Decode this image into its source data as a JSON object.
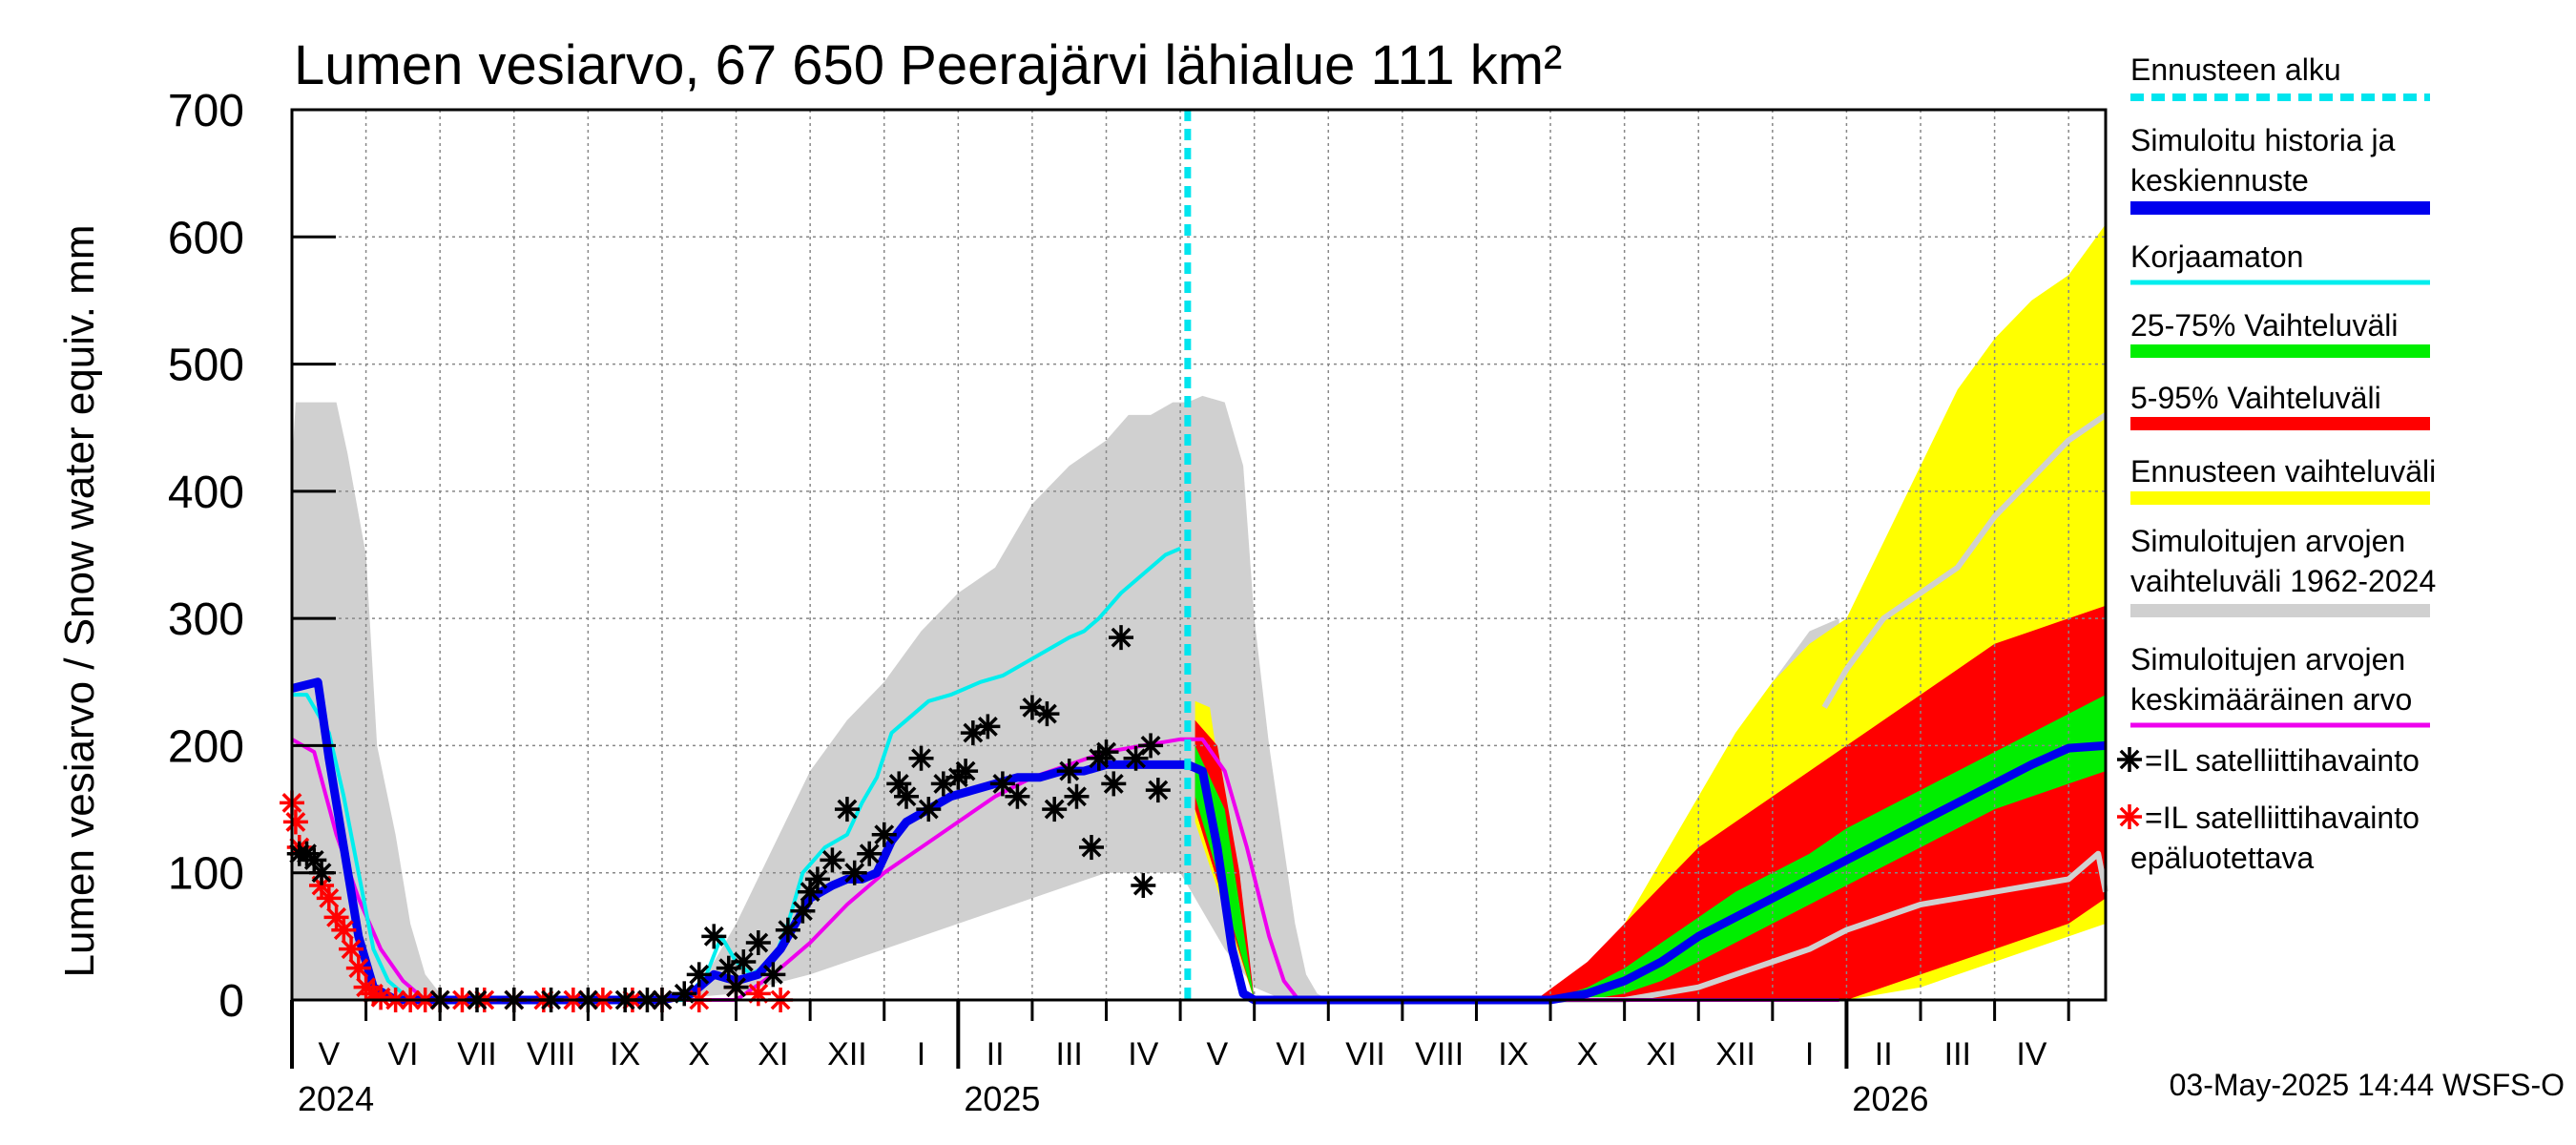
{
  "chart_data": {
    "type": "area",
    "title": "Lumen vesiarvo, 67 650 Peerajärvi lähialue 111 km²",
    "ylabel": "Lumen vesiarvo / Snow water equiv.    mm",
    "ylim": [
      0,
      700
    ],
    "yticks": [
      0,
      100,
      200,
      300,
      400,
      500,
      600,
      700
    ],
    "grid": true,
    "x_unit": "months since 2024-04-01",
    "xlim": [
      1.0,
      25.5
    ],
    "month_labels": [
      "V",
      "VI",
      "VII",
      "VIII",
      "IX",
      "X",
      "XI",
      "XII",
      "I",
      "II",
      "III",
      "IV",
      "V",
      "VI",
      "VII",
      "VIII",
      "IX",
      "X",
      "XI",
      "XII",
      "I",
      "II",
      "III",
      "IV"
    ],
    "year_labels": [
      "2024",
      "2025",
      "2026"
    ],
    "forecast_start": 13.1,
    "legend": [
      {
        "label": "Ennusteen alku",
        "color": "#00e5ee",
        "style": "dashed"
      },
      {
        "label": "Simuloitu historia ja keskiennuste",
        "color": "#0000ee",
        "style": "thick"
      },
      {
        "label": "Korjaamaton",
        "color": "#00eeee",
        "style": "line"
      },
      {
        "label": "25-75% Vaihteluväli",
        "color": "#00ee00",
        "style": "band"
      },
      {
        "label": "5-95% Vaihteluväli",
        "color": "#ff0000",
        "style": "band"
      },
      {
        "label": "Ennusteen vaihteluväli",
        "color": "#ffff00",
        "style": "band"
      },
      {
        "label": "Simuloitujen arvojen vaihteluväli 1962-2024",
        "color": "#d0d0d0",
        "style": "band"
      },
      {
        "label": "Simuloitujen arvojen keskimääräinen arvo",
        "color": "#ee00ee",
        "style": "line"
      },
      {
        "label": "=IL satelliittihavainto",
        "color": "#000000",
        "style": "star"
      },
      {
        "label": "=IL satelliittihavainto epäluotettava",
        "color": "#ff0000",
        "style": "star"
      }
    ],
    "footer": "03-May-2025 14:44 WSFS-O",
    "series": [
      {
        "name": "historical_range_upper",
        "color": "#d0d0d0",
        "x": [
          1.0,
          1.05,
          1.6,
          1.75,
          2.0,
          2.15,
          2.4,
          2.6,
          2.8,
          3.0,
          3.2,
          6.0,
          6.5,
          6.8,
          7.0,
          7.5,
          8.0,
          8.5,
          9.0,
          9.5,
          10.0,
          10.5,
          11.0,
          11.5,
          12.0,
          12.3,
          12.6,
          12.9,
          13.1,
          13.3,
          13.6,
          13.85,
          14.0,
          14.2,
          14.4,
          14.55,
          14.7,
          14.85,
          15.0,
          18.0,
          18.5,
          19.0,
          19.5,
          20.0,
          20.5,
          21.0,
          21.5,
          21.9
        ],
        "y": [
          420,
          470,
          470,
          430,
          350,
          200,
          130,
          60,
          20,
          5,
          0,
          0,
          10,
          40,
          60,
          120,
          180,
          220,
          250,
          290,
          320,
          340,
          390,
          420,
          440,
          460,
          460,
          470,
          470,
          475,
          470,
          420,
          300,
          200,
          120,
          60,
          20,
          5,
          0,
          0,
          10,
          40,
          90,
          140,
          200,
          250,
          290,
          300
        ]
      },
      {
        "name": "historical_range_lower",
        "color": "#d0d0d0",
        "x": [
          1.0,
          1.5,
          2.0,
          3.0,
          6.0,
          7.0,
          8.0,
          9.0,
          10.0,
          11.0,
          12.0,
          13.0,
          13.6,
          14.0,
          14.4,
          14.6,
          21.9
        ],
        "y": [
          0,
          0,
          0,
          0,
          0,
          5,
          20,
          40,
          60,
          80,
          100,
          100,
          40,
          10,
          0,
          0,
          0
        ]
      },
      {
        "name": "forecast_range_upper",
        "color": "#ffff00",
        "x": [
          13.2,
          13.4,
          13.6,
          13.8,
          14.0,
          17.8,
          18.5,
          19.0,
          19.5,
          20.0,
          20.5,
          21.0,
          21.5,
          22.0,
          22.5,
          23.0,
          23.5,
          24.0,
          24.5,
          25.0,
          25.5
        ],
        "y": [
          235,
          230,
          150,
          50,
          0,
          0,
          20,
          60,
          110,
          160,
          210,
          250,
          280,
          300,
          360,
          420,
          480,
          520,
          550,
          570,
          610
        ]
      },
      {
        "name": "forecast_range_lower",
        "color": "#ffff00",
        "x": [
          13.2,
          14.0,
          20.0,
          21.0,
          22.0,
          23.0,
          24.0,
          25.0,
          25.5
        ],
        "y": [
          140,
          0,
          0,
          0,
          0,
          10,
          30,
          50,
          60
        ]
      },
      {
        "name": "p5_95_upper",
        "color": "#ff0000",
        "x": [
          13.2,
          13.5,
          13.8,
          14.0,
          17.8,
          18.5,
          19.0,
          19.5,
          20.0,
          20.5,
          21.0,
          21.5,
          22.0,
          22.5,
          23.0,
          23.5,
          24.0,
          24.5,
          25.0,
          25.5
        ],
        "y": [
          220,
          200,
          100,
          0,
          0,
          30,
          60,
          90,
          120,
          140,
          160,
          180,
          200,
          220,
          240,
          260,
          280,
          290,
          300,
          310
        ]
      },
      {
        "name": "p5_95_lower",
        "color": "#ff0000",
        "x": [
          13.2,
          14.0,
          20.0,
          21.0,
          22.0,
          23.0,
          24.0,
          25.0,
          25.5
        ],
        "y": [
          150,
          0,
          0,
          0,
          0,
          20,
          40,
          60,
          80
        ]
      },
      {
        "name": "p25_75_upper",
        "color": "#00ee00",
        "x": [
          13.2,
          13.6,
          14.0,
          18.0,
          18.5,
          19.0,
          19.5,
          20.0,
          20.5,
          21.0,
          21.5,
          22.0,
          22.5,
          23.0,
          23.5,
          24.0,
          24.5,
          25.0,
          25.5
        ],
        "y": [
          200,
          150,
          0,
          0,
          10,
          25,
          45,
          65,
          85,
          100,
          115,
          135,
          150,
          165,
          180,
          195,
          210,
          225,
          240
        ]
      },
      {
        "name": "p25_75_lower",
        "color": "#00ee00",
        "x": [
          13.2,
          14.0,
          18.0,
          18.5,
          19.0,
          19.5,
          20.0,
          20.5,
          21.0,
          21.5,
          22.0,
          22.5,
          23.0,
          23.5,
          24.0,
          24.5,
          25.0,
          25.5
        ],
        "y": [
          160,
          0,
          0,
          0,
          5,
          15,
          30,
          45,
          60,
          75,
          90,
          105,
          120,
          135,
          150,
          160,
          170,
          180
        ]
      },
      {
        "name": "historical_mean",
        "color": "#ee00ee",
        "x": [
          1.0,
          1.3,
          1.6,
          1.9,
          2.2,
          2.5,
          2.8,
          3.2,
          7.0,
          7.5,
          8.0,
          8.5,
          9.0,
          9.5,
          10.0,
          10.5,
          11.0,
          11.5,
          12.0,
          12.5,
          13.0,
          13.3,
          13.6,
          13.9,
          14.2,
          14.4,
          14.6,
          21.9
        ],
        "y": [
          205,
          195,
          130,
          80,
          40,
          15,
          0,
          0,
          0,
          20,
          45,
          75,
          100,
          120,
          140,
          160,
          175,
          185,
          195,
          200,
          205,
          205,
          180,
          120,
          50,
          15,
          0,
          0
        ]
      },
      {
        "name": "korjaamaton",
        "color": "#00eeee",
        "x": [
          1.0,
          1.2,
          1.5,
          1.7,
          1.9,
          2.1,
          2.3,
          2.6,
          2.9,
          6.3,
          6.6,
          6.8,
          7.0,
          7.2,
          7.5,
          7.7,
          7.9,
          8.2,
          8.5,
          8.7,
          8.9,
          9.1,
          9.3,
          9.6,
          9.9,
          10.1,
          10.3,
          10.6,
          10.9,
          11.2,
          11.5,
          11.7,
          11.9,
          12.2,
          12.5,
          12.8,
          13.0
        ],
        "y": [
          240,
          240,
          210,
          160,
          100,
          40,
          15,
          0,
          0,
          0,
          20,
          50,
          30,
          20,
          30,
          60,
          100,
          120,
          130,
          155,
          175,
          210,
          220,
          235,
          240,
          245,
          250,
          255,
          265,
          275,
          285,
          290,
          300,
          320,
          335,
          350,
          355
        ]
      },
      {
        "name": "simulated_mean_forecast",
        "color": "#0000ee",
        "x": [
          1.0,
          1.35,
          1.5,
          1.7,
          1.9,
          2.1,
          2.4,
          2.8,
          6.0,
          6.4,
          6.7,
          7.0,
          7.3,
          7.6,
          7.8,
          8.0,
          8.3,
          8.5,
          8.7,
          8.9,
          9.1,
          9.3,
          9.6,
          9.9,
          10.2,
          10.5,
          10.8,
          11.1,
          11.4,
          11.7,
          12.0,
          12.3,
          12.6,
          12.9,
          13.1,
          13.3,
          13.5,
          13.7,
          13.85,
          14.0,
          18.0,
          18.5,
          19.0,
          19.5,
          20.0,
          20.5,
          21.0,
          21.5,
          22.0,
          22.5,
          23.0,
          23.5,
          24.0,
          24.5,
          25.0,
          25.5
        ],
        "y": [
          245,
          250,
          190,
          120,
          50,
          10,
          0,
          0,
          0,
          5,
          20,
          15,
          20,
          40,
          60,
          80,
          90,
          95,
          95,
          100,
          125,
          140,
          150,
          160,
          165,
          170,
          175,
          175,
          180,
          180,
          185,
          185,
          185,
          185,
          185,
          180,
          120,
          40,
          5,
          0,
          0,
          5,
          15,
          30,
          50,
          65,
          80,
          95,
          110,
          125,
          140,
          155,
          170,
          185,
          198,
          200
        ]
      },
      {
        "name": "reference_light",
        "color": "#d0d0d0",
        "x": [
          18.0,
          18.5,
          19.0,
          19.5,
          20.0,
          20.5,
          21.0,
          21.5,
          22.0,
          22.5,
          23.0,
          23.5,
          24.0,
          24.5,
          25.0,
          25.4,
          25.5
        ],
        "y": [
          0,
          0,
          0,
          5,
          10,
          20,
          30,
          40,
          55,
          65,
          75,
          80,
          85,
          90,
          95,
          115,
          85
        ]
      },
      {
        "name": "forecast_upper_light",
        "color": "#d0d0d0",
        "x": [
          21.7,
          22.0,
          22.5,
          23.0,
          23.5,
          24.0,
          24.5,
          25.0,
          25.5
        ],
        "y": [
          230,
          260,
          300,
          320,
          340,
          380,
          410,
          440,
          460
        ]
      },
      {
        "name": "IL_satellite",
        "color": "#000000",
        "marker": "star",
        "x": [
          1.1,
          1.2,
          1.3,
          1.4,
          3.0,
          3.5,
          4.0,
          4.5,
          5.0,
          5.5,
          5.8,
          6.0,
          6.3,
          6.5,
          6.7,
          6.9,
          7.0,
          7.1,
          7.3,
          7.5,
          7.7,
          7.9,
          8.0,
          8.1,
          8.3,
          8.5,
          8.6,
          8.8,
          9.0,
          9.2,
          9.3,
          9.5,
          9.6,
          9.8,
          10.0,
          10.1,
          10.2,
          10.4,
          10.6,
          10.8,
          11.0,
          11.2,
          11.3,
          11.5,
          11.6,
          11.8,
          11.9,
          12.0,
          12.1,
          12.2,
          12.4,
          12.5,
          12.6,
          12.7
        ],
        "y": [
          115,
          115,
          110,
          100,
          0,
          0,
          0,
          0,
          0,
          0,
          0,
          0,
          5,
          20,
          50,
          25,
          10,
          30,
          45,
          20,
          55,
          70,
          85,
          95,
          110,
          150,
          100,
          115,
          130,
          170,
          160,
          190,
          150,
          170,
          175,
          180,
          210,
          215,
          170,
          160,
          230,
          225,
          150,
          180,
          160,
          120,
          190,
          195,
          170,
          285,
          190,
          90,
          200,
          165
        ]
      },
      {
        "name": "IL_satellite_unreliable",
        "color": "#ff0000",
        "marker": "star",
        "x": [
          1.0,
          1.05,
          1.1,
          1.4,
          1.5,
          1.6,
          1.7,
          1.8,
          1.9,
          2.0,
          2.1,
          2.2,
          2.4,
          2.6,
          2.8,
          3.0,
          3.3,
          3.6,
          4.0,
          4.4,
          4.8,
          5.2,
          5.6,
          6.0,
          6.5,
          7.0,
          7.3,
          7.6
        ],
        "y": [
          155,
          140,
          120,
          90,
          80,
          65,
          55,
          40,
          25,
          10,
          5,
          2,
          0,
          0,
          0,
          0,
          0,
          0,
          0,
          0,
          0,
          0,
          0,
          0,
          0,
          10,
          5,
          0
        ]
      }
    ]
  }
}
